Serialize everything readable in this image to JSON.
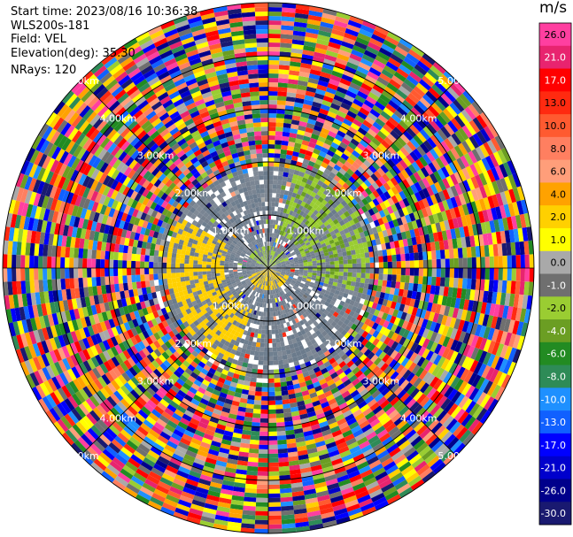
{
  "header": {
    "start_time": "Start time: 2023/08/16 10:36:38",
    "instrument": "WLS200s-181",
    "field": "Field: VEL",
    "elevation": "Elevation(deg): 35.30",
    "nrays": "NRays: 120"
  },
  "chart_data": {
    "type": "heatmap",
    "projection": "polar-ppi",
    "title": "",
    "nrays": 120,
    "elevation_deg": 35.3,
    "field": "VEL",
    "unit": "m/s",
    "range_rings_km": [
      1.0,
      2.0,
      3.0,
      4.0,
      5.0
    ],
    "ring_labels": [
      "1.00km",
      "2.00km",
      "3.00km",
      "4.00km",
      "5.00km"
    ],
    "max_range_km": 5.0,
    "colorbar": {
      "label": "m/s",
      "ticks": [
        26.0,
        21.0,
        17.0,
        13.0,
        10.0,
        8.0,
        6.0,
        4.0,
        2.0,
        1.0,
        0.0,
        -1.0,
        -2.0,
        -4.0,
        -6.0,
        -8.0,
        -10.0,
        -13.0,
        -17.0,
        -21.0,
        -26.0,
        -30.0
      ],
      "tick_labels": [
        "26.0",
        "21.0",
        "17.0",
        "13.0",
        "10.0",
        "8.0",
        "6.0",
        "4.0",
        "2.0",
        "1.0",
        "0.0",
        "-1.0",
        "-2.0",
        "-4.0",
        "-6.0",
        "-8.0",
        "-10.0",
        "-13.0",
        "-17.0",
        "-21.0",
        "-26.0",
        "-30.0"
      ],
      "colors": [
        "#ff3fa0",
        "#e8246f",
        "#ff0000",
        "#ff2a10",
        "#ff5a30",
        "#ff7f60",
        "#ff9e7a",
        "#ffa200",
        "#ffd000",
        "#ffff00",
        "#a9a9a9",
        "#6f6f6f",
        "#9acd32",
        "#6b9e23",
        "#228b22",
        "#2e8b57",
        "#1e90ff",
        "#1060ff",
        "#0000ff",
        "#0000cc",
        "#00008b",
        "#191970"
      ]
    },
    "regions": [
      {
        "from_km": 0.0,
        "to_km": 0.5,
        "note": "near field mostly gray, green to north, yellow to south"
      },
      {
        "from_km": 0.5,
        "to_km": 2.2,
        "note": "gray base with yellow arc west-southwest and green arc north-east"
      },
      {
        "from_km": 2.2,
        "to_km": 5.0,
        "note": "noisy multicolor outer gates"
      }
    ]
  }
}
